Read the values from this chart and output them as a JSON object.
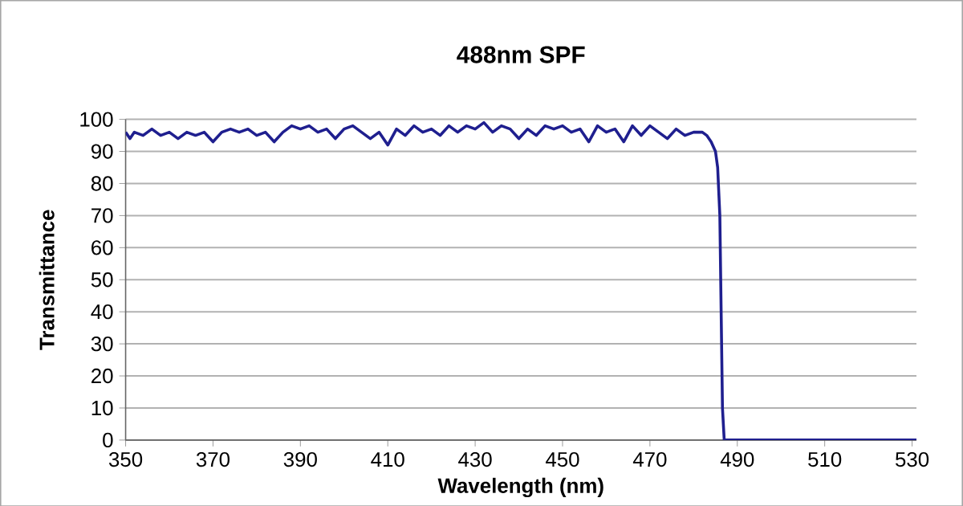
{
  "chart_data": {
    "type": "line",
    "title": "488nm SPF",
    "xlabel": "Wavelength (nm)",
    "ylabel": "Transmittance",
    "x": [
      350,
      351,
      352,
      354,
      356,
      358,
      360,
      362,
      364,
      366,
      368,
      370,
      372,
      374,
      376,
      378,
      380,
      382,
      384,
      386,
      388,
      390,
      392,
      394,
      396,
      398,
      400,
      402,
      404,
      406,
      408,
      410,
      412,
      414,
      416,
      418,
      420,
      422,
      424,
      426,
      428,
      430,
      432,
      434,
      436,
      438,
      440,
      442,
      444,
      446,
      448,
      450,
      452,
      454,
      456,
      458,
      460,
      462,
      464,
      466,
      468,
      470,
      472,
      474,
      476,
      478,
      480,
      482,
      483,
      484,
      485,
      485.5,
      486,
      486.3,
      486.6,
      487,
      490,
      500,
      510,
      520,
      531
    ],
    "series": [
      {
        "color": "#1f1f8f",
        "values": [
          96,
          94,
          96,
          95,
          97,
          95,
          96,
          94,
          96,
          95,
          96,
          93,
          96,
          97,
          96,
          97,
          95,
          96,
          93,
          96,
          98,
          97,
          98,
          96,
          97,
          94,
          97,
          98,
          96,
          94,
          96,
          92,
          97,
          95,
          98,
          96,
          97,
          95,
          98,
          96,
          98,
          97,
          99,
          96,
          98,
          97,
          94,
          97,
          95,
          98,
          97,
          98,
          96,
          97,
          93,
          98,
          96,
          97,
          93,
          98,
          95,
          98,
          96,
          94,
          97,
          95,
          96,
          96,
          95,
          93,
          90,
          85,
          70,
          40,
          10,
          0,
          0,
          0,
          0,
          0,
          0
        ]
      }
    ],
    "xlim": [
      350,
      531
    ],
    "ylim": [
      0,
      100
    ],
    "xticks": [
      350,
      370,
      390,
      410,
      430,
      450,
      470,
      490,
      510,
      530
    ],
    "yticks": [
      0,
      10,
      20,
      30,
      40,
      50,
      60,
      70,
      80,
      90,
      100
    ],
    "grid": "y",
    "marker": "none",
    "line_style": "solid"
  }
}
